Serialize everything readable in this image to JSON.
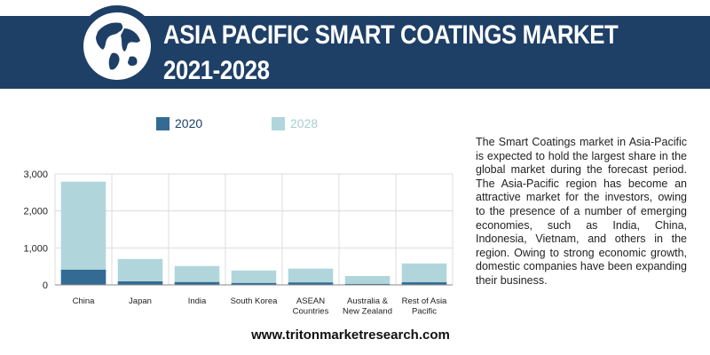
{
  "header": {
    "title_line1": "ASIA PACIFIC SMART COATINGS MARKET",
    "title_line2": "2021-2028"
  },
  "colors": {
    "banner": "#1e3f66",
    "series_2020": "#336b94",
    "series_2028": "#b0d6dc",
    "legend_2020_text": "#1e3f66",
    "legend_2028_text": "#a9cdd3"
  },
  "description": "The Smart Coatings market in Asia-Pacific is expected to hold the largest share in the global market during the forecast period. The Asia-Pacific region has become an attractive market for the investors, owing to the presence of a number of emerging economies, such as India, China, Indonesia, Vietnam, and others in the region. Owing to strong economic growth, domestic companies have been expanding their business.",
  "footer": {
    "url": "www.tritonmarketresearch.com"
  },
  "chart_data": {
    "type": "bar",
    "stacking": "overlay",
    "categories": [
      "China",
      "Japan",
      "India",
      "South Korea",
      "ASEAN Countries",
      "Australia & New Zealand",
      "Rest of Asia Pacific"
    ],
    "category_lines": [
      [
        "China"
      ],
      [
        "Japan"
      ],
      [
        "India"
      ],
      [
        "South Korea"
      ],
      [
        "ASEAN",
        "Countries"
      ],
      [
        "Australia &",
        "New Zealand"
      ],
      [
        "Rest of Asia",
        "Pacific"
      ]
    ],
    "series": [
      {
        "name": "2020",
        "values": [
          410,
          95,
          75,
          50,
          65,
          25,
          70
        ]
      },
      {
        "name": "2028",
        "values": [
          2790,
          700,
          510,
          390,
          440,
          240,
          580
        ]
      }
    ],
    "ylim": [
      0,
      3000
    ],
    "yticks": [
      0,
      1000,
      2000,
      3000
    ],
    "ytick_labels": [
      "0",
      "1,000",
      "2,000",
      "3,000"
    ],
    "grid": true,
    "legend_position": "top",
    "xlabel": "",
    "ylabel": ""
  }
}
